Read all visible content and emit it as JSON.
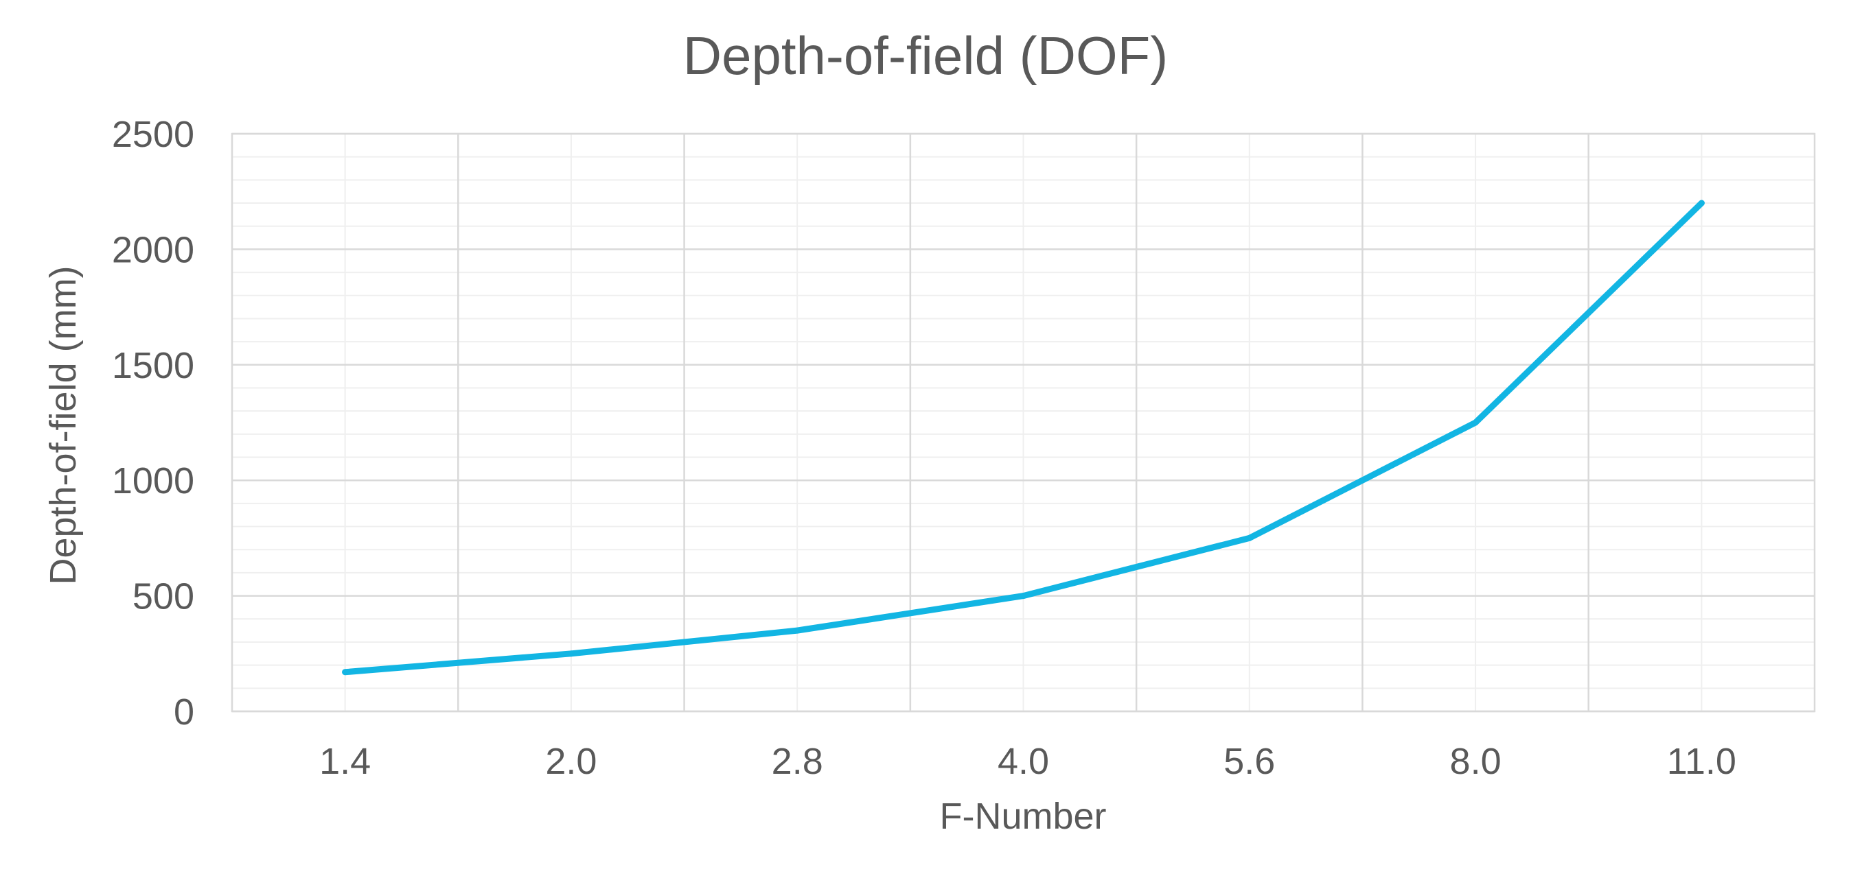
{
  "chart_data": {
    "type": "line",
    "title": "Depth-of-field (DOF)",
    "xlabel": "F-Number",
    "ylabel": "Depth-of-field (mm)",
    "categories": [
      "1.4",
      "2.0",
      "2.8",
      "4.0",
      "5.6",
      "8.0",
      "11.0"
    ],
    "series": [
      {
        "values": [
          170,
          250,
          350,
          500,
          750,
          1250,
          2200
        ]
      }
    ],
    "ylim": [
      0,
      2500
    ],
    "yticks": [
      0,
      500,
      1000,
      1500,
      2000,
      2500
    ],
    "grid": {
      "major": true,
      "minor": true
    },
    "legend": "none",
    "colors": {
      "line": "#12B5E3",
      "major_grid": "#D9D9D9",
      "minor_grid": "#EFEFEF",
      "text": "#595959"
    }
  }
}
